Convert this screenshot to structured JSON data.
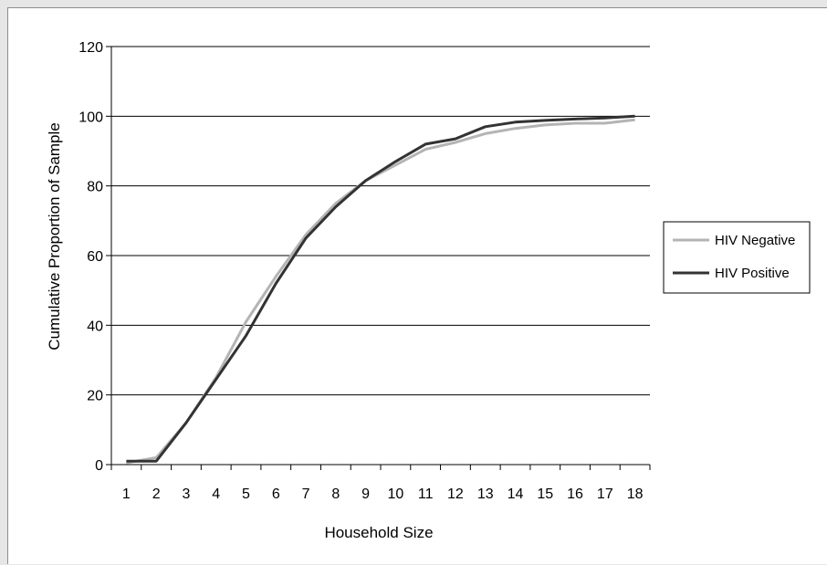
{
  "chart_data": {
    "type": "line",
    "title": "",
    "xlabel": "Household Size",
    "ylabel": "Cumulative Proportion of Sample",
    "categories": [
      "1",
      "2",
      "3",
      "4",
      "5",
      "6",
      "7",
      "8",
      "9",
      "10",
      "11",
      "12",
      "13",
      "14",
      "15",
      "16",
      "17",
      "18"
    ],
    "ylim": [
      0,
      120
    ],
    "yticks": [
      "0",
      "20",
      "40",
      "60",
      "80",
      "100",
      "120"
    ],
    "grid": true,
    "legend_position": "right",
    "series": [
      {
        "name": "HIV Negative",
        "color": "#b4b4b4",
        "values": [
          0.5,
          2,
          12,
          25,
          41,
          54,
          66,
          75,
          81.5,
          86,
          90.5,
          92.5,
          95,
          96.5,
          97.5,
          98,
          98,
          99
        ]
      },
      {
        "name": "HIV Positive",
        "color": "#333333",
        "values": [
          1,
          1,
          12,
          24.5,
          37,
          52,
          65,
          74,
          81.5,
          87,
          92,
          93.5,
          97,
          98.3,
          98.8,
          99.2,
          99.5,
          100
        ]
      }
    ]
  }
}
